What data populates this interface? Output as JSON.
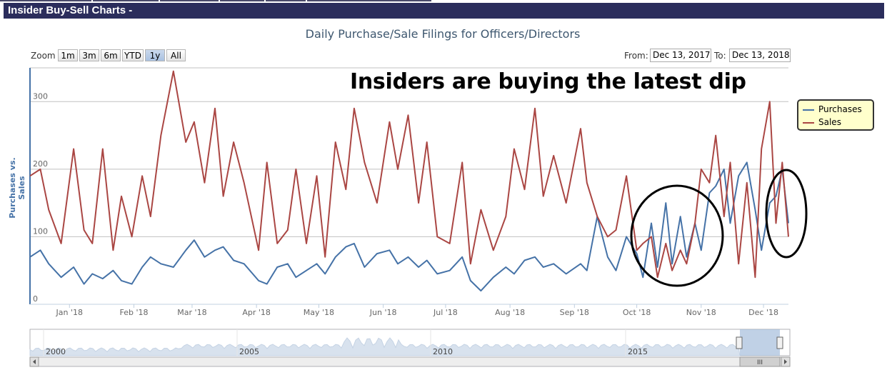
{
  "header": {
    "title": "Insider Buy-Sell Charts -"
  },
  "chart_title": "Daily Purchase/Sale Filings for Officers/Directors",
  "annotation": "Insiders are buying the latest dip",
  "zoom": {
    "label": "Zoom",
    "buttons": [
      "1m",
      "3m",
      "6m",
      "YTD",
      "1y",
      "All"
    ],
    "selected": "1y"
  },
  "range": {
    "from_label": "From:",
    "from_value": "Dec 13, 2017",
    "to_label": "To:",
    "to_value": "Dec 13, 2018"
  },
  "navigator": {
    "year_labels": [
      "2000",
      "2005",
      "2010",
      "2015"
    ],
    "scroll_thumb": "III"
  },
  "colors": {
    "purchases": "#4572a7",
    "sales": "#aa4643",
    "header_bg": "#2b2d5c",
    "legend_bg": "#ffffcc"
  },
  "chart_data": {
    "type": "line",
    "ylabel": "Purchases vs. Sales",
    "ylim": [
      0,
      350
    ],
    "y_ticks": [
      0,
      100,
      200,
      300
    ],
    "x_range": [
      "2017-12-13",
      "2018-12-13"
    ],
    "x_ticks": [
      {
        "date": "2018-01-01",
        "label": "Jan '18"
      },
      {
        "date": "2018-02-01",
        "label": "Feb '18"
      },
      {
        "date": "2018-03-01",
        "label": "Mar '18"
      },
      {
        "date": "2018-04-01",
        "label": "Apr '18"
      },
      {
        "date": "2018-05-01",
        "label": "May '18"
      },
      {
        "date": "2018-06-01",
        "label": "Jun '18"
      },
      {
        "date": "2018-07-01",
        "label": "Jul '18"
      },
      {
        "date": "2018-08-01",
        "label": "Aug '18"
      },
      {
        "date": "2018-09-01",
        "label": "Sep '18"
      },
      {
        "date": "2018-10-01",
        "label": "Oct '18"
      },
      {
        "date": "2018-11-01",
        "label": "Nov '18"
      },
      {
        "date": "2018-12-01",
        "label": "Dec '18"
      }
    ],
    "legend_position": "top-right",
    "grid": true,
    "series": [
      {
        "name": "Purchases",
        "x": [
          "2017-12-13",
          "2017-12-18",
          "2017-12-22",
          "2017-12-28",
          "2018-01-03",
          "2018-01-08",
          "2018-01-12",
          "2018-01-17",
          "2018-01-22",
          "2018-01-26",
          "2018-01-31",
          "2018-02-05",
          "2018-02-09",
          "2018-02-14",
          "2018-02-20",
          "2018-02-26",
          "2018-03-02",
          "2018-03-07",
          "2018-03-12",
          "2018-03-16",
          "2018-03-21",
          "2018-03-26",
          "2018-04-02",
          "2018-04-06",
          "2018-04-11",
          "2018-04-16",
          "2018-04-20",
          "2018-04-25",
          "2018-04-30",
          "2018-05-04",
          "2018-05-09",
          "2018-05-14",
          "2018-05-18",
          "2018-05-23",
          "2018-05-29",
          "2018-06-04",
          "2018-06-08",
          "2018-06-13",
          "2018-06-18",
          "2018-06-22",
          "2018-06-27",
          "2018-07-03",
          "2018-07-09",
          "2018-07-13",
          "2018-07-18",
          "2018-07-24",
          "2018-07-30",
          "2018-08-03",
          "2018-08-08",
          "2018-08-13",
          "2018-08-17",
          "2018-08-22",
          "2018-08-28",
          "2018-09-04",
          "2018-09-07",
          "2018-09-12",
          "2018-09-17",
          "2018-09-21",
          "2018-09-26",
          "2018-10-01",
          "2018-10-04",
          "2018-10-08",
          "2018-10-11",
          "2018-10-15",
          "2018-10-18",
          "2018-10-22",
          "2018-10-25",
          "2018-10-29",
          "2018-11-01",
          "2018-11-05",
          "2018-11-08",
          "2018-11-12",
          "2018-11-15",
          "2018-11-19",
          "2018-11-23",
          "2018-11-27",
          "2018-11-30",
          "2018-12-04",
          "2018-12-07",
          "2018-12-10",
          "2018-12-13"
        ],
        "values": [
          70,
          80,
          60,
          40,
          55,
          30,
          45,
          38,
          50,
          35,
          30,
          55,
          70,
          60,
          55,
          80,
          95,
          70,
          80,
          85,
          65,
          60,
          35,
          30,
          55,
          60,
          40,
          50,
          60,
          45,
          70,
          85,
          90,
          55,
          75,
          80,
          60,
          70,
          55,
          65,
          45,
          50,
          70,
          35,
          20,
          40,
          55,
          45,
          65,
          70,
          55,
          60,
          45,
          60,
          50,
          130,
          70,
          50,
          100,
          75,
          40,
          120,
          55,
          150,
          60,
          130,
          70,
          120,
          80,
          165,
          175,
          200,
          120,
          190,
          210,
          140,
          80,
          150,
          160,
          200,
          120
        ]
      },
      {
        "name": "Sales",
        "x": [
          "2017-12-13",
          "2017-12-18",
          "2017-12-22",
          "2017-12-28",
          "2018-01-03",
          "2018-01-08",
          "2018-01-12",
          "2018-01-17",
          "2018-01-22",
          "2018-01-26",
          "2018-01-31",
          "2018-02-05",
          "2018-02-09",
          "2018-02-14",
          "2018-02-20",
          "2018-02-26",
          "2018-03-02",
          "2018-03-07",
          "2018-03-12",
          "2018-03-16",
          "2018-03-21",
          "2018-03-26",
          "2018-04-02",
          "2018-04-06",
          "2018-04-11",
          "2018-04-16",
          "2018-04-20",
          "2018-04-25",
          "2018-04-30",
          "2018-05-04",
          "2018-05-09",
          "2018-05-14",
          "2018-05-18",
          "2018-05-23",
          "2018-05-29",
          "2018-06-04",
          "2018-06-08",
          "2018-06-13",
          "2018-06-18",
          "2018-06-22",
          "2018-06-27",
          "2018-07-03",
          "2018-07-09",
          "2018-07-13",
          "2018-07-18",
          "2018-07-24",
          "2018-07-30",
          "2018-08-03",
          "2018-08-08",
          "2018-08-13",
          "2018-08-17",
          "2018-08-22",
          "2018-08-28",
          "2018-09-04",
          "2018-09-07",
          "2018-09-12",
          "2018-09-17",
          "2018-09-21",
          "2018-09-26",
          "2018-10-01",
          "2018-10-04",
          "2018-10-08",
          "2018-10-11",
          "2018-10-15",
          "2018-10-18",
          "2018-10-22",
          "2018-10-25",
          "2018-10-29",
          "2018-11-01",
          "2018-11-05",
          "2018-11-08",
          "2018-11-12",
          "2018-11-15",
          "2018-11-19",
          "2018-11-23",
          "2018-11-27",
          "2018-11-30",
          "2018-12-04",
          "2018-12-07",
          "2018-12-10",
          "2018-12-13"
        ],
        "values": [
          190,
          200,
          140,
          90,
          230,
          110,
          90,
          230,
          80,
          160,
          100,
          190,
          130,
          250,
          345,
          240,
          270,
          180,
          290,
          160,
          240,
          180,
          80,
          210,
          90,
          110,
          200,
          90,
          190,
          70,
          240,
          170,
          290,
          210,
          150,
          270,
          200,
          280,
          150,
          240,
          100,
          90,
          210,
          60,
          140,
          80,
          130,
          230,
          170,
          290,
          160,
          220,
          150,
          260,
          180,
          130,
          100,
          110,
          190,
          80,
          90,
          100,
          40,
          90,
          50,
          80,
          60,
          120,
          200,
          180,
          250,
          130,
          210,
          60,
          180,
          40,
          230,
          300,
          120,
          210,
          100
        ]
      }
    ]
  }
}
